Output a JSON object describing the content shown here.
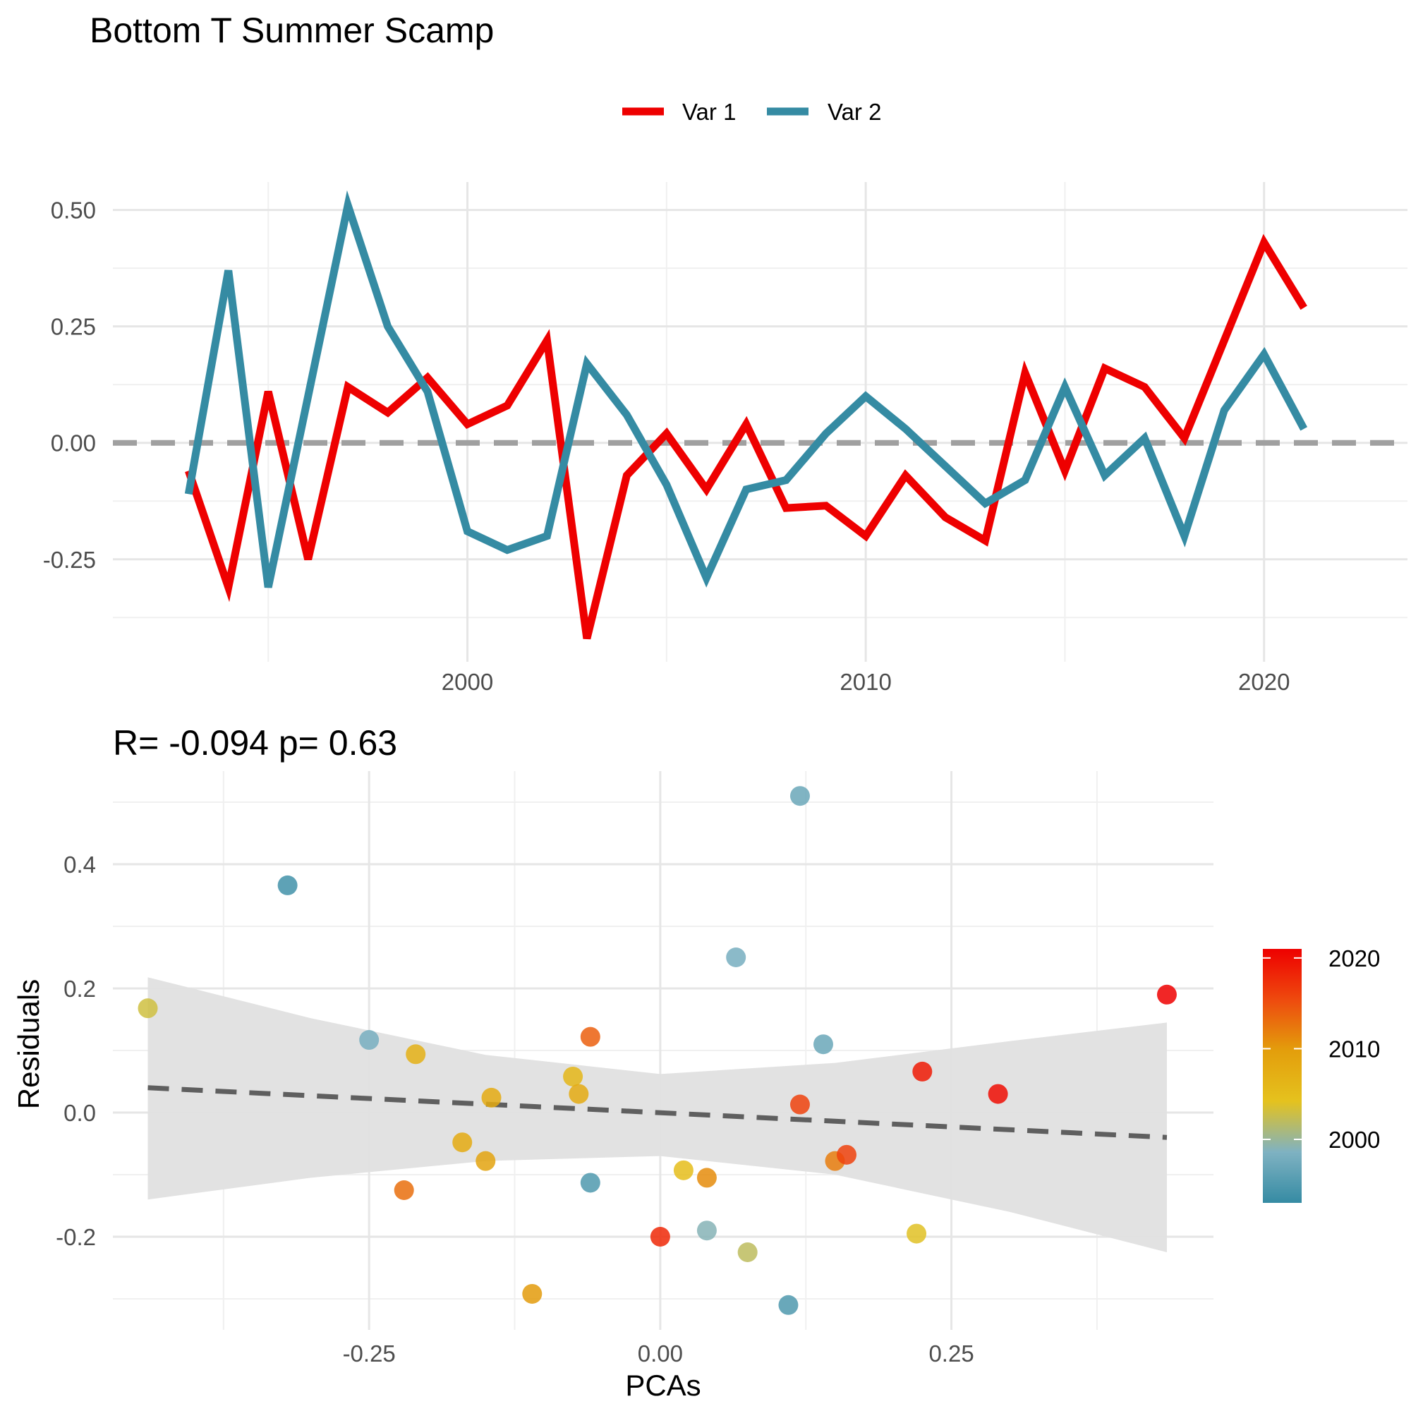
{
  "title": "Bottom T Summer Scamp",
  "colors": {
    "var1": "#EE0000",
    "var2": "#358BA3",
    "zero_line": "#A0A0A0",
    "trend_line": "#5F5F5F",
    "ribbon": "#E0E0E0",
    "grid_major": "#E6E6E6",
    "grid_minor": "#F0F0F0",
    "colorbar_stops": [
      "#358BA3",
      "#7FB2C2",
      "#E5C21E",
      "#E39E0C",
      "#EE4A0E",
      "#EE0000"
    ]
  },
  "chart_data": [
    {
      "type": "line",
      "title": "",
      "xlabel": "",
      "ylabel": "",
      "legend_position": "top",
      "grid": true,
      "x": [
        1993,
        1994,
        1995,
        1996,
        1997,
        1998,
        1999,
        2000,
        2001,
        2002,
        2003,
        2004,
        2005,
        2006,
        2007,
        2008,
        2009,
        2010,
        2011,
        2012,
        2013,
        2014,
        2015,
        2016,
        2017,
        2018,
        2019,
        2020,
        2021
      ],
      "series": [
        {
          "name": "Var 1",
          "values": [
            -0.06,
            -0.31,
            0.11,
            -0.25,
            0.12,
            0.065,
            0.14,
            0.04,
            0.08,
            0.22,
            -0.42,
            -0.07,
            0.02,
            -0.1,
            0.04,
            -0.14,
            -0.135,
            -0.2,
            -0.07,
            -0.16,
            -0.21,
            0.15,
            -0.06,
            0.16,
            0.12,
            0.01,
            0.22,
            0.43,
            0.29
          ]
        },
        {
          "name": "Var 2",
          "values": [
            -0.11,
            0.37,
            -0.31,
            0.1,
            0.51,
            0.25,
            0.11,
            -0.19,
            -0.23,
            -0.2,
            0.17,
            0.06,
            -0.09,
            -0.29,
            -0.1,
            -0.08,
            0.02,
            0.1,
            0.03,
            -0.05,
            -0.13,
            -0.08,
            0.12,
            -0.07,
            0.01,
            -0.2,
            0.07,
            0.19,
            0.03
          ]
        }
      ],
      "reference_line": {
        "y": 0,
        "style": "dashed"
      },
      "xticks": [
        "2000",
        "2010",
        "2020"
      ],
      "yticks": [
        "0.50",
        "0.25",
        "0.00",
        "-0.25"
      ],
      "xlim": [
        1991.1,
        2023.6
      ],
      "ylim": [
        -0.47,
        0.56
      ]
    },
    {
      "type": "scatter",
      "title": "R= -0.094  p= 0.63",
      "xlabel": "PCAs",
      "ylabel": "Residuals",
      "grid": true,
      "legend_position": "right",
      "color_scale": {
        "min": 1993,
        "max": 2021,
        "ticks": [
          "2020",
          "2010",
          "2000"
        ]
      },
      "points": [
        {
          "x": -0.44,
          "y": 0.168,
          "year": 2003
        },
        {
          "x": -0.32,
          "y": 0.366,
          "year": 1994
        },
        {
          "x": -0.25,
          "y": 0.117,
          "year": 1998
        },
        {
          "x": -0.21,
          "y": 0.094,
          "year": 2007
        },
        {
          "x": -0.22,
          "y": -0.125,
          "year": 2013
        },
        {
          "x": -0.17,
          "y": -0.048,
          "year": 2008
        },
        {
          "x": -0.145,
          "y": 0.024,
          "year": 2008
        },
        {
          "x": -0.15,
          "y": -0.078,
          "year": 2009
        },
        {
          "x": -0.11,
          "y": -0.292,
          "year": 2010
        },
        {
          "x": -0.075,
          "y": 0.058,
          "year": 2006
        },
        {
          "x": -0.07,
          "y": 0.03,
          "year": 2008
        },
        {
          "x": -0.06,
          "y": 0.122,
          "year": 2014
        },
        {
          "x": -0.06,
          "y": -0.113,
          "year": 1995
        },
        {
          "x": 0.0,
          "y": -0.2,
          "year": 2018
        },
        {
          "x": 0.02,
          "y": -0.093,
          "year": 2005
        },
        {
          "x": 0.04,
          "y": -0.105,
          "year": 2011
        },
        {
          "x": 0.04,
          "y": -0.19,
          "year": 1999
        },
        {
          "x": 0.065,
          "y": 0.25,
          "year": 1998
        },
        {
          "x": 0.075,
          "y": -0.225,
          "year": 2002
        },
        {
          "x": 0.11,
          "y": -0.31,
          "year": 1995
        },
        {
          "x": 0.12,
          "y": 0.51,
          "year": 1997
        },
        {
          "x": 0.12,
          "y": 0.013,
          "year": 2016
        },
        {
          "x": 0.14,
          "y": 0.11,
          "year": 1997
        },
        {
          "x": 0.15,
          "y": -0.078,
          "year": 2012
        },
        {
          "x": 0.16,
          "y": -0.068,
          "year": 2016
        },
        {
          "x": 0.22,
          "y": -0.195,
          "year": 2004
        },
        {
          "x": 0.225,
          "y": 0.066,
          "year": 2019
        },
        {
          "x": 0.29,
          "y": 0.03,
          "year": 2020
        },
        {
          "x": 0.435,
          "y": 0.19,
          "year": 2021
        }
      ],
      "trend": {
        "x": [
          -0.44,
          0.435
        ],
        "y": [
          0.04,
          -0.04
        ]
      },
      "ribbon": {
        "x": [
          -0.44,
          -0.3,
          -0.15,
          0.0,
          0.15,
          0.3,
          0.435
        ],
        "upper": [
          0.218,
          0.152,
          0.093,
          0.062,
          0.08,
          0.115,
          0.145
        ],
        "lower": [
          -0.14,
          -0.105,
          -0.078,
          -0.07,
          -0.1,
          -0.16,
          -0.225
        ]
      },
      "xticks": [
        "-0.25",
        "0.00",
        "0.25"
      ],
      "yticks": [
        "0.4",
        "0.2",
        "0.0",
        "-0.2"
      ],
      "xlim": [
        -0.47,
        0.475
      ],
      "ylim": [
        -0.35,
        0.55
      ]
    }
  ]
}
